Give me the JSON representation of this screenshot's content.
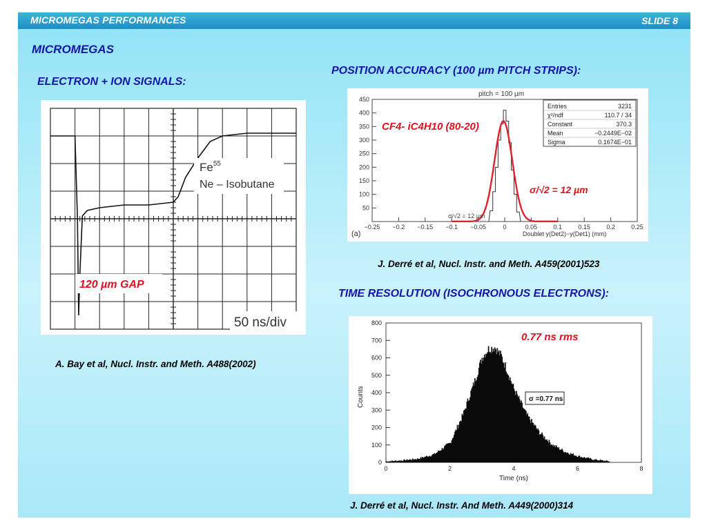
{
  "header": {
    "title": "MICROMEGAS PERFORMANCES",
    "slide": "SLIDE 8"
  },
  "section_title": "MICROMEGAS",
  "left": {
    "heading": "ELECTRON + ION SIGNALS:",
    "scope": {
      "legend_line1": "Fe",
      "legend_sup": "55",
      "legend_line2": "Ne – Isobutane",
      "gap_label": "120 µm GAP",
      "scale_label": "50 ns/div"
    },
    "citation": "A. Bay et al, Nucl. Instr. and Meth. A488(2002)"
  },
  "position": {
    "heading": "POSITION ACCURACY (100 µm PITCH STRIPS):",
    "plot_title": "pitch = 100 µm",
    "gas_label": "CF4- iC4H10 (80-20)",
    "sigma_label": "σ/√2 = 12 µm",
    "sigma_small": "σ/√2 =      12 µm",
    "stats": [
      {
        "k": "Entries",
        "v": "3231"
      },
      {
        "k": "χ²/ndf",
        "v": "110.7  /  34"
      },
      {
        "k": "Constant",
        "v": "370.3"
      },
      {
        "k": "Mean",
        "v": "−0.2449E−02"
      },
      {
        "k": "Sigma",
        "v": "0.1674E−01"
      }
    ],
    "xlabel": "Doublet  y(Det2)−y(Det1) (mm)",
    "panel_tag": "(a)",
    "citation": "J. Derré et al, Nucl. Instr. and Meth. A459(2001)523"
  },
  "time": {
    "heading": "TIME RESOLUTION (ISOCHRONOUS ELECTRONS):",
    "rms_label": "0.77 ns rms",
    "sigma_box": "σ =0.77 ns",
    "xlabel": "Time (ns)",
    "ylabel": "Counts",
    "citation": "J. Derré et al, Nucl. Instr. And Meth. A449(2000)314"
  },
  "chart_data": [
    {
      "type": "line",
      "title": "",
      "xlabel": "",
      "ylabel": "",
      "grid": true,
      "description_of_axes": "oscilloscope, 10 x 8 divisions, 50 ns/div",
      "series": [
        {
          "x": [
            0,
            0.5,
            1,
            1.1,
            1.15,
            1.2,
            1.3,
            1.5,
            2,
            3,
            4,
            5,
            5.2,
            5.5,
            6,
            6.5,
            7,
            8,
            9,
            10
          ],
          "y": [
            7,
            7,
            7,
            4,
            0.5,
            2,
            4.1,
            4.3,
            4.4,
            4.5,
            4.5,
            4.6,
            4.8,
            5.5,
            6.2,
            6.8,
            7.0,
            7.1,
            7.1,
            7.1
          ]
        }
      ]
    },
    {
      "type": "bar",
      "title": "pitch = 100 µm",
      "xlabel": "Doublet  y(Det2)−y(Det1) (mm)",
      "ylabel": "",
      "xlim": [
        -0.25,
        0.25
      ],
      "ylim": [
        0,
        450
      ],
      "xticks": [
        -0.25,
        -0.2,
        -0.15,
        -0.1,
        -0.05,
        0,
        0.05,
        0.1,
        0.15,
        0.2,
        0.25
      ],
      "yticks": [
        50,
        100,
        150,
        200,
        250,
        300,
        350,
        400,
        450
      ],
      "fit": {
        "type": "gaussian",
        "constant": 370.3,
        "mean": -0.002449,
        "sigma": 0.01674
      },
      "x": [
        -0.025,
        -0.02,
        -0.015,
        -0.01,
        -0.005,
        0,
        0.005,
        0.01,
        0.015,
        0.02,
        0.025
      ],
      "values": [
        40,
        110,
        200,
        300,
        360,
        410,
        370,
        290,
        190,
        100,
        35
      ]
    },
    {
      "type": "bar",
      "title": "",
      "xlabel": "Time (ns)",
      "ylabel": "Counts",
      "xlim": [
        0,
        8
      ],
      "ylim": [
        0,
        800
      ],
      "xticks": [
        0,
        2,
        4,
        6,
        8
      ],
      "yticks": [
        0,
        100,
        200,
        300,
        400,
        500,
        600,
        700,
        800
      ],
      "x": [
        0,
        0.5,
        1,
        1.5,
        2,
        2.4,
        2.8,
        3.0,
        3.2,
        3.4,
        3.6,
        3.8,
        4.0,
        4.4,
        4.8,
        5.2,
        5.6,
        6.0,
        6.5,
        7.0
      ],
      "values": [
        5,
        10,
        20,
        45,
        110,
        270,
        480,
        600,
        650,
        660,
        610,
        520,
        420,
        270,
        170,
        100,
        60,
        35,
        15,
        5
      ]
    }
  ]
}
